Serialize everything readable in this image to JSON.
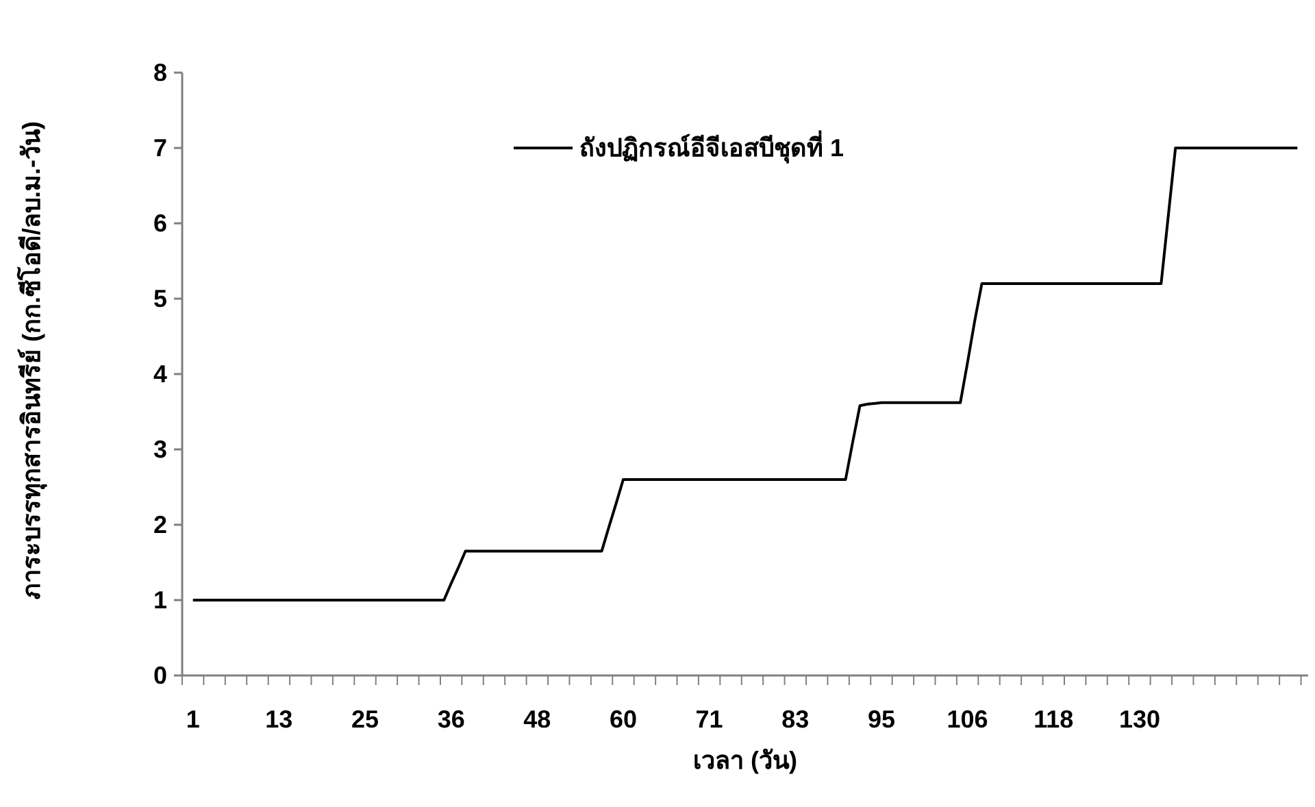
{
  "chart_data": {
    "type": "line",
    "xlabel": "เวลา (วัน)",
    "ylabel": "ภาระบรรทุกสารอินทรีย์ (กก.ซีโอดี/ลบ.ม.-วัน)",
    "categories": [
      null,
      "1",
      null,
      null,
      null,
      null,
      null,
      null,
      null,
      null,
      null,
      null,
      null,
      "13",
      null,
      null,
      null,
      null,
      null,
      null,
      null,
      null,
      null,
      null,
      null,
      "25",
      null,
      null,
      null,
      null,
      null,
      null,
      null,
      null,
      null,
      null,
      null,
      "36",
      null,
      null,
      null,
      null,
      null,
      null,
      null,
      null,
      null,
      null,
      null,
      "48",
      null,
      null,
      null,
      null,
      null,
      null,
      null,
      null,
      null,
      null,
      null,
      "60",
      null,
      null,
      null,
      null,
      null,
      null,
      null,
      null,
      null,
      null,
      null,
      "71",
      null,
      null,
      null,
      null,
      null,
      null,
      null,
      null,
      null,
      null,
      null,
      "83",
      null,
      null,
      null,
      null,
      null,
      null,
      null,
      null,
      null,
      null,
      null,
      "95",
      null,
      null,
      null,
      null,
      null,
      null,
      null,
      null,
      null,
      null,
      null,
      "106",
      null,
      null,
      null,
      null,
      null,
      null,
      null,
      null,
      null,
      null,
      null,
      "118",
      null,
      null,
      null,
      null,
      null,
      null,
      null,
      null,
      null,
      null,
      null,
      "130",
      null,
      null,
      null,
      null,
      null,
      null,
      null,
      null,
      null,
      null,
      null,
      null,
      null,
      null,
      null,
      null,
      null,
      null,
      null,
      null,
      null,
      null,
      null
    ],
    "series": [
      {
        "name": "ถังปฏิกรณ์อีจีเอสบีชุดที่ 1",
        "color": "#000000",
        "values": [
          null,
          1,
          1,
          1,
          1,
          1,
          1,
          1,
          1,
          1,
          1,
          1,
          1,
          1,
          1,
          1,
          1,
          1,
          1,
          1,
          1,
          1,
          1,
          1,
          1,
          1,
          1,
          1,
          1,
          1,
          1,
          1,
          1,
          1,
          1,
          1,
          1,
          1.22,
          1.43,
          1.65,
          1.65,
          1.65,
          1.65,
          1.65,
          1.65,
          1.65,
          1.65,
          1.65,
          1.65,
          1.65,
          1.65,
          1.65,
          1.65,
          1.65,
          1.65,
          1.65,
          1.65,
          1.65,
          1.65,
          1.97,
          2.28,
          2.6,
          2.6,
          2.6,
          2.6,
          2.6,
          2.6,
          2.6,
          2.6,
          2.6,
          2.6,
          2.6,
          2.6,
          2.6,
          2.6,
          2.6,
          2.6,
          2.6,
          2.6,
          2.6,
          2.6,
          2.6,
          2.6,
          2.6,
          2.6,
          2.6,
          2.6,
          2.6,
          2.6,
          2.6,
          2.6,
          2.6,
          2.6,
          3.1,
          3.58,
          3.6,
          3.61,
          3.62,
          3.62,
          3.62,
          3.62,
          3.62,
          3.62,
          3.62,
          3.62,
          3.62,
          3.62,
          3.62,
          3.62,
          4.15,
          4.7,
          5.2,
          5.2,
          5.2,
          5.2,
          5.2,
          5.2,
          5.2,
          5.2,
          5.2,
          5.2,
          5.2,
          5.2,
          5.2,
          5.2,
          5.2,
          5.2,
          5.2,
          5.2,
          5.2,
          5.2,
          5.2,
          5.2,
          5.2,
          5.2,
          5.2,
          5.2,
          6.1,
          7,
          7,
          7,
          7,
          7,
          7,
          7,
          7,
          7,
          7,
          7,
          7,
          7,
          7,
          7,
          7,
          7,
          7,
          null
        ]
      }
    ],
    "ylim": [
      0,
      8
    ],
    "yticks": [
      0,
      1,
      2,
      3,
      4,
      5,
      6,
      7,
      8
    ],
    "legend": "top"
  }
}
